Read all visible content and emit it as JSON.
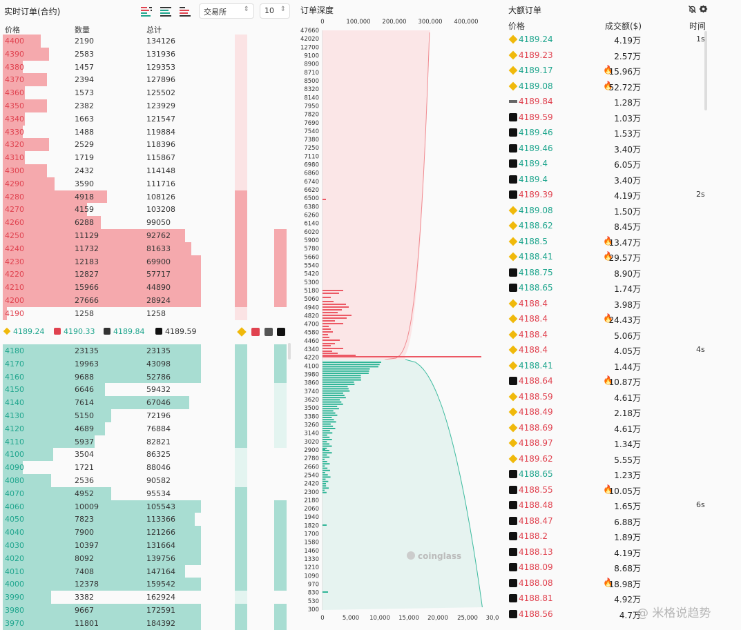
{
  "orderbook": {
    "title": "实时订单(合约)",
    "headers": {
      "price": "价格",
      "qty": "数量",
      "total": "总计"
    },
    "exchange_select": "交易所",
    "depth_select": "10",
    "asks": [
      {
        "price": "4400",
        "qty": "2190",
        "total": "134126",
        "w": 0.19
      },
      {
        "price": "4390",
        "qty": "2583",
        "total": "131936",
        "w": 0.23
      },
      {
        "price": "4380",
        "qty": "1457",
        "total": "129353",
        "w": 0.1
      },
      {
        "price": "4370",
        "qty": "2394",
        "total": "127896",
        "w": 0.22
      },
      {
        "price": "4360",
        "qty": "1573",
        "total": "125502",
        "w": 0.11
      },
      {
        "price": "4350",
        "qty": "2382",
        "total": "123929",
        "w": 0.22
      },
      {
        "price": "4340",
        "qty": "1663",
        "total": "121547",
        "w": 0.11
      },
      {
        "price": "4330",
        "qty": "1488",
        "total": "119884",
        "w": 0.1
      },
      {
        "price": "4320",
        "qty": "2529",
        "total": "118396",
        "w": 0.23
      },
      {
        "price": "4310",
        "qty": "1719",
        "total": "115867",
        "w": 0.11
      },
      {
        "price": "4300",
        "qty": "2432",
        "total": "114148",
        "w": 0.22
      },
      {
        "price": "4290",
        "qty": "3590",
        "total": "111716",
        "w": 0.26
      },
      {
        "price": "4280",
        "qty": "4918",
        "total": "108126",
        "w": 0.52
      },
      {
        "price": "4270",
        "qty": "4159",
        "total": "103208",
        "w": 0.42
      },
      {
        "price": "4260",
        "qty": "6288",
        "total": "99050",
        "w": 0.49
      },
      {
        "price": "4250",
        "qty": "11129",
        "total": "92762",
        "w": 0.91
      },
      {
        "price": "4240",
        "qty": "11732",
        "total": "81633",
        "w": 0.94
      },
      {
        "price": "4230",
        "qty": "12183",
        "total": "69900",
        "w": 0.99
      },
      {
        "price": "4220",
        "qty": "12827",
        "total": "57717",
        "w": 0.99
      },
      {
        "price": "4210",
        "qty": "15966",
        "total": "44890",
        "w": 0.99
      },
      {
        "price": "4200",
        "qty": "27666",
        "total": "28924",
        "w": 0.99
      },
      {
        "price": "4190",
        "qty": "1258",
        "total": "1258",
        "w": 0.02
      }
    ],
    "bids": [
      {
        "price": "4180",
        "qty": "23135",
        "total": "23135",
        "w": 0.99
      },
      {
        "price": "4170",
        "qty": "19963",
        "total": "43098",
        "w": 0.99
      },
      {
        "price": "4160",
        "qty": "9688",
        "total": "52786",
        "w": 0.99
      },
      {
        "price": "4150",
        "qty": "6646",
        "total": "59432",
        "w": 0.51
      },
      {
        "price": "4140",
        "qty": "7614",
        "total": "67046",
        "w": 0.93
      },
      {
        "price": "4130",
        "qty": "5150",
        "total": "72196",
        "w": 0.54
      },
      {
        "price": "4120",
        "qty": "4689",
        "total": "76884",
        "w": 0.51
      },
      {
        "price": "4110",
        "qty": "5937",
        "total": "82821",
        "w": 0.46
      },
      {
        "price": "4100",
        "qty": "3504",
        "total": "86325",
        "w": 0.25
      },
      {
        "price": "4090",
        "qty": "1721",
        "total": "88046",
        "w": 0.1
      },
      {
        "price": "4080",
        "qty": "2536",
        "total": "90582",
        "w": 0.24
      },
      {
        "price": "4070",
        "qty": "4952",
        "total": "95534",
        "w": 0.54
      },
      {
        "price": "4060",
        "qty": "10009",
        "total": "105543",
        "w": 0.99
      },
      {
        "price": "4050",
        "qty": "7823",
        "total": "113366",
        "w": 0.96
      },
      {
        "price": "4040",
        "qty": "7900",
        "total": "121266",
        "w": 0.99
      },
      {
        "price": "4030",
        "qty": "10397",
        "total": "131664",
        "w": 0.99
      },
      {
        "price": "4020",
        "qty": "8092",
        "total": "139756",
        "w": 0.99
      },
      {
        "price": "4010",
        "qty": "7408",
        "total": "147164",
        "w": 0.91
      },
      {
        "price": "4000",
        "qty": "12378",
        "total": "159542",
        "w": 0.99
      },
      {
        "price": "3990",
        "qty": "3382",
        "total": "162924",
        "w": 0.24
      },
      {
        "price": "3980",
        "qty": "9667",
        "total": "172591",
        "w": 0.99
      },
      {
        "price": "3970",
        "qty": "11801",
        "total": "184392",
        "w": 0.99
      }
    ],
    "mid_prices": [
      {
        "icon": "binance-icon",
        "price": "4189.24",
        "color": "#1ea58d"
      },
      {
        "icon": "bybit-icon",
        "price": "4190.33",
        "color": "#1ea58d"
      },
      {
        "icon": "bitget-icon",
        "price": "4189.84",
        "color": "#1ea58d"
      },
      {
        "icon": "okx-icon",
        "price": "4189.59",
        "color": "#333333"
      }
    ]
  },
  "depth": {
    "title": "订单深度",
    "top_ticks": [
      "0",
      "100,000",
      "200,000",
      "300,000",
      "400,000"
    ],
    "bottom_ticks": [
      "0",
      "5,000",
      "10,000",
      "15,000",
      "20,000",
      "25,000",
      "30,0"
    ],
    "y_ticks": [
      "47660",
      "42020",
      "12700",
      "9100",
      "8900",
      "8710",
      "8500",
      "8320",
      "8140",
      "7950",
      "7820",
      "7690",
      "7540",
      "7380",
      "7250",
      "7110",
      "6980",
      "6860",
      "6740",
      "6620",
      "6500",
      "6380",
      "6260",
      "6140",
      "6020",
      "5900",
      "5780",
      "5660",
      "5540",
      "5420",
      "5300",
      "5180",
      "5060",
      "4940",
      "4820",
      "4700",
      "4580",
      "4460",
      "4340",
      "4220",
      "4100",
      "3980",
      "3860",
      "3740",
      "3620",
      "3500",
      "3380",
      "3260",
      "3140",
      "3020",
      "2900",
      "2780",
      "2660",
      "2540",
      "2420",
      "2300",
      "2180",
      "2060",
      "1940",
      "1820",
      "1700",
      "1580",
      "1460",
      "1330",
      "1210",
      "1090",
      "970",
      "830",
      "530",
      "300"
    ],
    "watermark": "coinglass",
    "ask_color": "#f08a90",
    "bid_color": "#3dbb9f"
  },
  "large_orders": {
    "title": "大额订单",
    "headers": {
      "price": "价格",
      "amount": "成交额($)",
      "time": "时间"
    },
    "rows": [
      {
        "ex": "binance",
        "price": "4189.24",
        "dir": "up",
        "fire": false,
        "amt": "4.19万",
        "time": "1s"
      },
      {
        "ex": "binance",
        "price": "4189.23",
        "dir": "dn",
        "fire": false,
        "amt": "2.57万",
        "time": ""
      },
      {
        "ex": "binance",
        "price": "4189.17",
        "dir": "up",
        "fire": true,
        "amt": "15.96万",
        "time": ""
      },
      {
        "ex": "binance",
        "price": "4189.08",
        "dir": "up",
        "fire": true,
        "amt": "52.72万",
        "time": ""
      },
      {
        "ex": "bitget",
        "price": "4189.84",
        "dir": "dn",
        "fire": false,
        "amt": "1.28万",
        "time": ""
      },
      {
        "ex": "okx",
        "price": "4189.59",
        "dir": "dn",
        "fire": false,
        "amt": "1.03万",
        "time": ""
      },
      {
        "ex": "okx",
        "price": "4189.46",
        "dir": "up",
        "fire": false,
        "amt": "1.53万",
        "time": ""
      },
      {
        "ex": "okx",
        "price": "4189.46",
        "dir": "up",
        "fire": false,
        "amt": "3.40万",
        "time": ""
      },
      {
        "ex": "okx",
        "price": "4189.4",
        "dir": "up",
        "fire": false,
        "amt": "6.05万",
        "time": ""
      },
      {
        "ex": "okx",
        "price": "4189.4",
        "dir": "up",
        "fire": false,
        "amt": "3.40万",
        "time": ""
      },
      {
        "ex": "okx",
        "price": "4189.39",
        "dir": "dn",
        "fire": false,
        "amt": "4.19万",
        "time": "2s"
      },
      {
        "ex": "binance",
        "price": "4189.08",
        "dir": "up",
        "fire": false,
        "amt": "1.50万",
        "time": ""
      },
      {
        "ex": "binance",
        "price": "4188.62",
        "dir": "up",
        "fire": false,
        "amt": "8.45万",
        "time": ""
      },
      {
        "ex": "binance",
        "price": "4188.5",
        "dir": "up",
        "fire": true,
        "amt": "13.47万",
        "time": ""
      },
      {
        "ex": "binance",
        "price": "4188.41",
        "dir": "up",
        "fire": true,
        "amt": "29.57万",
        "time": ""
      },
      {
        "ex": "okx",
        "price": "4188.75",
        "dir": "up",
        "fire": false,
        "amt": "8.90万",
        "time": ""
      },
      {
        "ex": "okx",
        "price": "4188.65",
        "dir": "up",
        "fire": false,
        "amt": "1.74万",
        "time": ""
      },
      {
        "ex": "binance",
        "price": "4188.4",
        "dir": "dn",
        "fire": false,
        "amt": "3.98万",
        "time": ""
      },
      {
        "ex": "binance",
        "price": "4188.4",
        "dir": "dn",
        "fire": true,
        "amt": "24.43万",
        "time": ""
      },
      {
        "ex": "binance",
        "price": "4188.4",
        "dir": "dn",
        "fire": false,
        "amt": "5.06万",
        "time": ""
      },
      {
        "ex": "binance",
        "price": "4188.4",
        "dir": "dn",
        "fire": false,
        "amt": "4.05万",
        "time": "4s"
      },
      {
        "ex": "binance",
        "price": "4188.41",
        "dir": "up",
        "fire": false,
        "amt": "1.44万",
        "time": ""
      },
      {
        "ex": "okx",
        "price": "4188.64",
        "dir": "dn",
        "fire": true,
        "amt": "10.87万",
        "time": ""
      },
      {
        "ex": "binance",
        "price": "4188.59",
        "dir": "dn",
        "fire": false,
        "amt": "4.61万",
        "time": ""
      },
      {
        "ex": "binance",
        "price": "4188.49",
        "dir": "dn",
        "fire": false,
        "amt": "2.18万",
        "time": ""
      },
      {
        "ex": "binance",
        "price": "4188.69",
        "dir": "dn",
        "fire": false,
        "amt": "4.61万",
        "time": ""
      },
      {
        "ex": "binance",
        "price": "4188.97",
        "dir": "dn",
        "fire": false,
        "amt": "1.34万",
        "time": ""
      },
      {
        "ex": "binance",
        "price": "4189.62",
        "dir": "dn",
        "fire": false,
        "amt": "5.55万",
        "time": ""
      },
      {
        "ex": "okx",
        "price": "4188.65",
        "dir": "up",
        "fire": false,
        "amt": "1.23万",
        "time": ""
      },
      {
        "ex": "okx",
        "price": "4188.55",
        "dir": "dn",
        "fire": true,
        "amt": "10.05万",
        "time": ""
      },
      {
        "ex": "okx",
        "price": "4188.48",
        "dir": "dn",
        "fire": false,
        "amt": "1.65万",
        "time": "6s"
      },
      {
        "ex": "okx",
        "price": "4188.47",
        "dir": "dn",
        "fire": false,
        "amt": "6.88万",
        "time": ""
      },
      {
        "ex": "okx",
        "price": "4188.2",
        "dir": "dn",
        "fire": false,
        "amt": "1.89万",
        "time": ""
      },
      {
        "ex": "okx",
        "price": "4188.13",
        "dir": "dn",
        "fire": false,
        "amt": "4.19万",
        "time": ""
      },
      {
        "ex": "okx",
        "price": "4188.09",
        "dir": "dn",
        "fire": false,
        "amt": "8.68万",
        "time": ""
      },
      {
        "ex": "okx",
        "price": "4188.08",
        "dir": "dn",
        "fire": true,
        "amt": "18.98万",
        "time": ""
      },
      {
        "ex": "okx",
        "price": "4188.81",
        "dir": "dn",
        "fire": false,
        "amt": "4.92万",
        "time": ""
      },
      {
        "ex": "okx",
        "price": "4188.56",
        "dir": "dn",
        "fire": false,
        "amt": "4.7万",
        "time": ""
      }
    ],
    "footer_watermark": "@ 米格说趋势"
  },
  "colors": {
    "up": "#1ea58d",
    "down": "#e0424f",
    "binance": "#f0b90b",
    "fire": "#f07b1a"
  }
}
